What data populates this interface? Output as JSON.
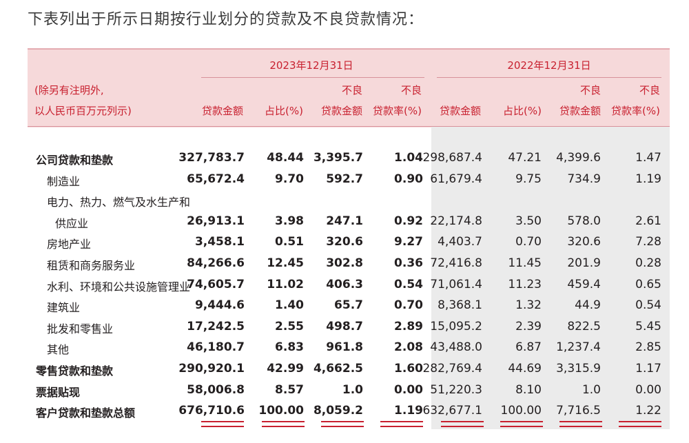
{
  "intro": "下表列出于所示日期按行业划分的贷款及不良贷款情况：",
  "header": {
    "period_2023": "2023年12月31日",
    "period_2022": "2022年12月31日",
    "note_line1": "(除另有注明外,",
    "note_line2": "以人民币百万元列示)",
    "col_amount": "贷款金额",
    "col_ratio": "占比(%)",
    "col_npl_top": "不良",
    "col_npl_bottom": "贷款金额",
    "col_nplr_top": "不良",
    "col_nplr_bottom": "贷款率(%)"
  },
  "rows": [
    {
      "label": "公司贷款和垫款",
      "bold": true,
      "indent": 0,
      "v": [
        "327,783.7",
        "48.44",
        "3,395.7",
        "1.04",
        "298,687.4",
        "47.21",
        "4,399.6",
        "1.47"
      ]
    },
    {
      "label": "制造业",
      "bold": false,
      "indent": 1,
      "v": [
        "65,672.4",
        "9.70",
        "592.7",
        "0.90",
        "61,679.4",
        "9.75",
        "734.9",
        "1.19"
      ]
    },
    {
      "label": "电力、热力、燃气及水生产和",
      "bold": false,
      "indent": 1,
      "v": [
        "",
        "",
        "",
        "",
        "",
        "",
        "",
        ""
      ]
    },
    {
      "label": "供应业",
      "bold": false,
      "indent": 2,
      "v": [
        "26,913.1",
        "3.98",
        "247.1",
        "0.92",
        "22,174.8",
        "3.50",
        "578.0",
        "2.61"
      ]
    },
    {
      "label": "房地产业",
      "bold": false,
      "indent": 1,
      "v": [
        "3,458.1",
        "0.51",
        "320.6",
        "9.27",
        "4,403.7",
        "0.70",
        "320.6",
        "7.28"
      ]
    },
    {
      "label": "租赁和商务服务业",
      "bold": false,
      "indent": 1,
      "v": [
        "84,266.6",
        "12.45",
        "302.8",
        "0.36",
        "72,416.8",
        "11.45",
        "201.9",
        "0.28"
      ]
    },
    {
      "label": "水利、环境和公共设施管理业",
      "bold": false,
      "indent": 1,
      "v": [
        "74,605.7",
        "11.02",
        "406.3",
        "0.54",
        "71,061.4",
        "11.23",
        "459.4",
        "0.65"
      ]
    },
    {
      "label": "建筑业",
      "bold": false,
      "indent": 1,
      "v": [
        "9,444.6",
        "1.40",
        "65.7",
        "0.70",
        "8,368.1",
        "1.32",
        "44.9",
        "0.54"
      ]
    },
    {
      "label": "批发和零售业",
      "bold": false,
      "indent": 1,
      "v": [
        "17,242.5",
        "2.55",
        "498.7",
        "2.89",
        "15,095.2",
        "2.39",
        "822.5",
        "5.45"
      ]
    },
    {
      "label": "其他",
      "bold": false,
      "indent": 1,
      "v": [
        "46,180.7",
        "6.83",
        "961.8",
        "2.08",
        "43,488.0",
        "6.87",
        "1,237.4",
        "2.85"
      ]
    },
    {
      "label": "零售贷款和垫款",
      "bold": true,
      "indent": 0,
      "v": [
        "290,920.1",
        "42.99",
        "4,662.5",
        "1.60",
        "282,769.4",
        "44.69",
        "3,315.9",
        "1.17"
      ]
    },
    {
      "label": "票据贴现",
      "bold": true,
      "indent": 0,
      "v": [
        "58,006.8",
        "8.57",
        "1.0",
        "0.00",
        "51,220.3",
        "8.10",
        "1.0",
        "0.00"
      ]
    },
    {
      "label": "客户贷款和垫款总额",
      "bold": true,
      "indent": 0,
      "v": [
        "676,710.6",
        "100.00",
        "8,059.2",
        "1.19",
        "632,677.1",
        "100.00",
        "7,716.5",
        "1.22"
      ]
    }
  ]
}
